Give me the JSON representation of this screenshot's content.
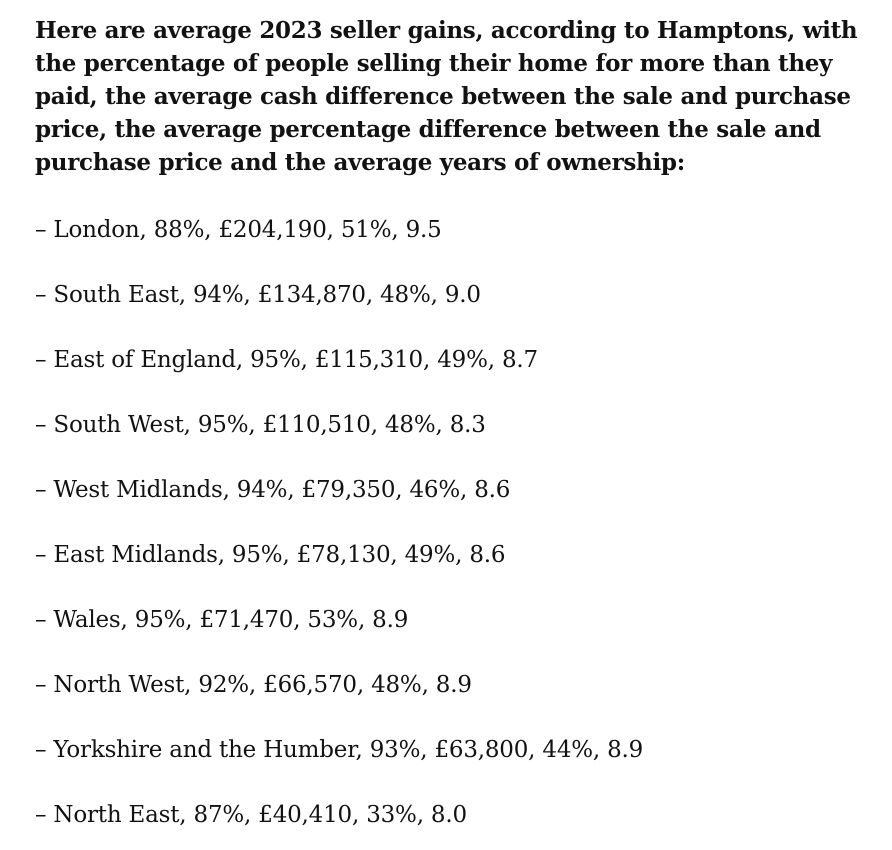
{
  "intro": "Here are average 2023 seller gains, according to Hamptons, with the percentage of people selling their home for more than they paid, the average cash difference between the sale and purchase price, the average percentage difference between the sale and purchase price and the average years of ownership:",
  "bullet_dash": "–",
  "text_color": "#121212",
  "background_color": "#ffffff",
  "items": [
    {
      "region": "London",
      "pct_sold_above_purchase": "88%",
      "avg_cash_gain": "£204,190",
      "avg_pct_gain": "51%",
      "avg_years_owned": "9.5"
    },
    {
      "region": "South East",
      "pct_sold_above_purchase": "94%",
      "avg_cash_gain": "£134,870",
      "avg_pct_gain": "48%",
      "avg_years_owned": "9.0"
    },
    {
      "region": "East of England",
      "pct_sold_above_purchase": "95%",
      "avg_cash_gain": "£115,310",
      "avg_pct_gain": "49%",
      "avg_years_owned": "8.7"
    },
    {
      "region": "South West",
      "pct_sold_above_purchase": "95%",
      "avg_cash_gain": "£110,510",
      "avg_pct_gain": "48%",
      "avg_years_owned": "8.3"
    },
    {
      "region": "West Midlands",
      "pct_sold_above_purchase": "94%",
      "avg_cash_gain": "£79,350",
      "avg_pct_gain": "46%",
      "avg_years_owned": "8.6"
    },
    {
      "region": "East Midlands",
      "pct_sold_above_purchase": "95%",
      "avg_cash_gain": "£78,130",
      "avg_pct_gain": "49%",
      "avg_years_owned": "8.6"
    },
    {
      "region": "Wales",
      "pct_sold_above_purchase": "95%",
      "avg_cash_gain": "£71,470",
      "avg_pct_gain": "53%",
      "avg_years_owned": "8.9"
    },
    {
      "region": "North West",
      "pct_sold_above_purchase": "92%",
      "avg_cash_gain": "£66,570",
      "avg_pct_gain": "48%",
      "avg_years_owned": "8.9"
    },
    {
      "region": "Yorkshire and the Humber",
      "pct_sold_above_purchase": "93%",
      "avg_cash_gain": "£63,800",
      "avg_pct_gain": "44%",
      "avg_years_owned": "8.9"
    },
    {
      "region": "North East",
      "pct_sold_above_purchase": "87%",
      "avg_cash_gain": "£40,410",
      "avg_pct_gain": "33%",
      "avg_years_owned": "8.0"
    }
  ]
}
